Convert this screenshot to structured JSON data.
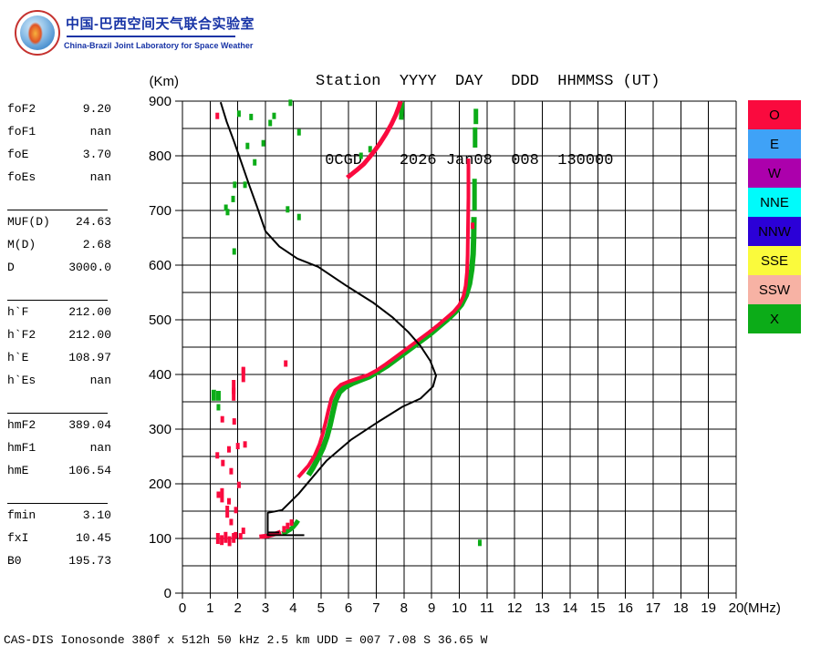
{
  "branding": {
    "title_cn": "中国-巴西空间天气联合实验室",
    "title_en": "China-Brazil Joint Laboratory for Space Weather"
  },
  "header": {
    "line1": "Station  YYYY  DAY   DDD  HHMMSS (UT)",
    "line2": " 0CGD    2026 Jan08  008  130000"
  },
  "parameters": {
    "groups": [
      [
        {
          "label": "foF2",
          "value": "9.20"
        },
        {
          "label": "foF1",
          "value": "nan"
        },
        {
          "label": "foE",
          "value": "3.70"
        },
        {
          "label": "foEs",
          "value": "nan"
        }
      ],
      [
        {
          "label": "MUF(D)",
          "value": "24.63"
        },
        {
          "label": "M(D)",
          "value": "2.68"
        },
        {
          "label": "D",
          "value": "3000.0"
        }
      ],
      [
        {
          "label": "h`F",
          "value": "212.00"
        },
        {
          "label": "h`F2",
          "value": "212.00"
        },
        {
          "label": "h`E",
          "value": "108.97"
        },
        {
          "label": "h`Es",
          "value": "nan"
        }
      ],
      [
        {
          "label": "hmF2",
          "value": "389.04"
        },
        {
          "label": "hmF1",
          "value": "nan"
        },
        {
          "label": "hmE",
          "value": "106.54"
        }
      ],
      [
        {
          "label": "fmin",
          "value": "3.10"
        },
        {
          "label": "fxI",
          "value": "10.45"
        },
        {
          "label": "B0",
          "value": "195.73"
        }
      ]
    ]
  },
  "legend": [
    {
      "label": "O",
      "color": "#fa0a3e"
    },
    {
      "label": "E",
      "color": "#3fa2f7"
    },
    {
      "label": "W",
      "color": "#ac00ac"
    },
    {
      "label": "NNE",
      "color": "#00fbfb"
    },
    {
      "label": "NNW",
      "color": "#2b00d7"
    },
    {
      "label": "SSE",
      "color": "#fafa3c"
    },
    {
      "label": "SSW",
      "color": "#f7b2a4"
    },
    {
      "label": "X",
      "color": "#0cac18"
    }
  ],
  "caption": "CAS-DIS Ionosonde 380f x 512h 50 kHz 2.5 km UDD = 007 7.08 S 36.65 W",
  "colors": {
    "o_red": "#fa0a3e",
    "x_green": "#0cac18",
    "profile": "#000000"
  },
  "chart_data": {
    "type": "scatter",
    "title": "Ionogram 0CGD 2026 Jan08 130000 UT",
    "xlabel": "(MHz)",
    "ylabel": "(Km)",
    "xlim": [
      0,
      20
    ],
    "ylim": [
      0,
      900
    ],
    "x_ticks": [
      0,
      1,
      2,
      3,
      4,
      5,
      6,
      7,
      8,
      9,
      10,
      11,
      12,
      13,
      14,
      15,
      16,
      17,
      18,
      19,
      20
    ],
    "y_ticks": [
      0,
      100,
      200,
      300,
      400,
      500,
      600,
      700,
      800,
      900
    ],
    "grid_y_step": 50,
    "grid": true,
    "legend_position": "right-outside",
    "series": [
      {
        "name": "X-mode-F-trace",
        "color_key": "x_green",
        "kind": "line",
        "width": 6,
        "points": [
          [
            4.55,
            216
          ],
          [
            4.72,
            230
          ],
          [
            4.9,
            247
          ],
          [
            5.08,
            266
          ],
          [
            5.22,
            286
          ],
          [
            5.33,
            307
          ],
          [
            5.43,
            330
          ],
          [
            5.53,
            352
          ],
          [
            5.68,
            368
          ],
          [
            5.88,
            377
          ],
          [
            6.15,
            384
          ],
          [
            6.45,
            390
          ],
          [
            6.75,
            396
          ],
          [
            7.05,
            405
          ],
          [
            7.4,
            416
          ],
          [
            7.75,
            429
          ],
          [
            8.15,
            444
          ],
          [
            8.55,
            459
          ],
          [
            8.95,
            474
          ],
          [
            9.3,
            489
          ],
          [
            9.6,
            502
          ],
          [
            9.85,
            514
          ],
          [
            10.08,
            528
          ],
          [
            10.25,
            545
          ],
          [
            10.37,
            566
          ],
          [
            10.45,
            592
          ],
          [
            10.5,
            620
          ],
          [
            10.52,
            652
          ],
          [
            10.53,
            688
          ]
        ]
      },
      {
        "name": "X-mode-F-dashes",
        "color_key": "x_green",
        "kind": "segments",
        "width": 5,
        "segments": [
          [
            [
              10.55,
              700
            ],
            [
              10.55,
              758
            ]
          ],
          [
            [
              10.57,
              815
            ],
            [
              10.57,
              852
            ]
          ],
          [
            [
              10.6,
              858
            ],
            [
              10.6,
              886
            ]
          ],
          [
            [
              7.9,
              866
            ],
            [
              7.93,
              898
            ]
          ],
          [
            [
              1.13,
              352
            ],
            [
              1.13,
              372
            ]
          ],
          [
            [
              1.3,
              352
            ],
            [
              1.3,
              370
            ]
          ]
        ]
      },
      {
        "name": "X-mode-E-trace",
        "color_key": "x_green",
        "kind": "line",
        "width": 5,
        "points": [
          [
            3.6,
            109
          ],
          [
            3.75,
            112
          ],
          [
            3.88,
            116
          ],
          [
            4.0,
            121
          ],
          [
            4.1,
            127
          ],
          [
            4.18,
            133
          ]
        ]
      },
      {
        "name": "X-scatter",
        "color_key": "x_green",
        "kind": "dots",
        "points": [
          [
            2.04,
            877
          ],
          [
            2.48,
            871
          ],
          [
            3.31,
            873
          ],
          [
            3.9,
            897
          ],
          [
            3.17,
            860
          ],
          [
            4.21,
            843
          ],
          [
            2.35,
            818
          ],
          [
            2.92,
            823
          ],
          [
            2.61,
            788
          ],
          [
            2.26,
            747
          ],
          [
            1.89,
            747
          ],
          [
            1.83,
            721
          ],
          [
            1.57,
            705
          ],
          [
            1.63,
            697
          ],
          [
            3.8,
            702
          ],
          [
            4.21,
            688
          ],
          [
            1.87,
            625
          ],
          [
            1.3,
            340
          ],
          [
            6.45,
            800
          ],
          [
            6.78,
            812
          ],
          [
            10.74,
            92
          ]
        ]
      },
      {
        "name": "O-mode-F-trace",
        "color_key": "o_red",
        "kind": "line",
        "width": 4,
        "points": [
          [
            4.18,
            212
          ],
          [
            4.32,
            220
          ],
          [
            4.55,
            233
          ],
          [
            4.78,
            252
          ],
          [
            4.95,
            272
          ],
          [
            5.07,
            292
          ],
          [
            5.17,
            312
          ],
          [
            5.27,
            334
          ],
          [
            5.38,
            356
          ],
          [
            5.52,
            371
          ],
          [
            5.72,
            381
          ],
          [
            6.0,
            387
          ],
          [
            6.35,
            393
          ],
          [
            6.7,
            399
          ],
          [
            7.0,
            407
          ],
          [
            7.35,
            419
          ],
          [
            7.7,
            432
          ],
          [
            8.1,
            447
          ],
          [
            8.5,
            462
          ],
          [
            8.9,
            477
          ],
          [
            9.25,
            491
          ],
          [
            9.55,
            504
          ],
          [
            9.8,
            515
          ],
          [
            10.0,
            527
          ],
          [
            10.15,
            543
          ],
          [
            10.23,
            562
          ],
          [
            10.28,
            588
          ],
          [
            10.3,
            618
          ],
          [
            10.31,
            652
          ],
          [
            10.32,
            688
          ],
          [
            10.33,
            725
          ],
          [
            10.33,
            762
          ],
          [
            10.33,
            795
          ]
        ]
      },
      {
        "name": "O-mode-2F-hop-trace",
        "color_key": "o_red",
        "kind": "line",
        "width": 5,
        "points": [
          [
            5.95,
            760
          ],
          [
            6.1,
            766
          ],
          [
            6.3,
            774
          ],
          [
            6.55,
            785
          ],
          [
            6.75,
            797
          ],
          [
            6.95,
            810
          ],
          [
            7.15,
            824
          ],
          [
            7.35,
            840
          ],
          [
            7.55,
            858
          ],
          [
            7.7,
            874
          ],
          [
            7.82,
            890
          ],
          [
            7.88,
            900
          ]
        ]
      },
      {
        "name": "O-mode-E-trace",
        "color_key": "o_red",
        "kind": "line",
        "width": 5,
        "points": [
          [
            2.78,
            103
          ],
          [
            2.95,
            104
          ],
          [
            3.1,
            105
          ],
          [
            3.25,
            107
          ],
          [
            3.4,
            109
          ],
          [
            3.55,
            112
          ]
        ]
      },
      {
        "name": "O-dashes",
        "color_key": "o_red",
        "kind": "segments",
        "width": 4,
        "segments": [
          [
            [
              1.85,
              352
            ],
            [
              1.85,
              390
            ]
          ],
          [
            [
              2.2,
              386
            ],
            [
              2.2,
              414
            ]
          ],
          [
            [
              1.43,
              166
            ],
            [
              1.43,
              192
            ]
          ],
          [
            [
              1.62,
              138
            ],
            [
              1.62,
              160
            ]
          ],
          [
            [
              1.28,
              90
            ],
            [
              1.28,
              110
            ]
          ],
          [
            [
              1.42,
              88
            ],
            [
              1.42,
              106
            ]
          ],
          [
            [
              1.56,
              92
            ],
            [
              1.56,
              112
            ]
          ],
          [
            [
              1.7,
              86
            ],
            [
              1.7,
              104
            ]
          ],
          [
            [
              1.85,
              92
            ],
            [
              1.85,
              110
            ]
          ]
        ]
      },
      {
        "name": "O-scatter",
        "color_key": "o_red",
        "kind": "dots",
        "points": [
          [
            1.26,
            873
          ],
          [
            3.73,
            420
          ],
          [
            2.2,
            407
          ],
          [
            1.85,
            370
          ],
          [
            1.44,
            318
          ],
          [
            1.87,
            314
          ],
          [
            2.0,
            269
          ],
          [
            2.26,
            272
          ],
          [
            1.68,
            263
          ],
          [
            1.26,
            252
          ],
          [
            1.46,
            238
          ],
          [
            1.76,
            223
          ],
          [
            2.04,
            198
          ],
          [
            1.3,
            180
          ],
          [
            1.68,
            168
          ],
          [
            1.93,
            152
          ],
          [
            1.76,
            130
          ],
          [
            2.2,
            114
          ],
          [
            2.1,
            104
          ],
          [
            1.92,
            106
          ],
          [
            3.67,
            117
          ],
          [
            3.8,
            123
          ],
          [
            3.94,
            129
          ],
          [
            10.48,
            672
          ]
        ]
      },
      {
        "name": "true-height-profile",
        "color_key": "profile",
        "kind": "line",
        "width": 2,
        "points": [
          [
            1.38,
            898
          ],
          [
            1.6,
            862
          ],
          [
            1.85,
            828
          ],
          [
            2.1,
            792
          ],
          [
            2.4,
            748
          ],
          [
            2.7,
            706
          ],
          [
            3.0,
            662
          ],
          [
            3.5,
            634
          ],
          [
            4.15,
            612
          ],
          [
            4.9,
            597
          ],
          [
            5.9,
            563
          ],
          [
            6.9,
            531
          ],
          [
            7.6,
            504
          ],
          [
            8.15,
            478
          ],
          [
            8.6,
            452
          ],
          [
            8.95,
            425
          ],
          [
            9.16,
            398
          ],
          [
            9.05,
            378
          ],
          [
            8.6,
            356
          ],
          [
            7.95,
            341
          ],
          [
            7.0,
            311
          ],
          [
            6.1,
            281
          ],
          [
            5.2,
            242
          ],
          [
            4.55,
            203
          ],
          [
            4.2,
            182
          ],
          [
            3.6,
            152
          ],
          [
            3.08,
            147
          ],
          [
            3.08,
            106
          ],
          [
            4.4,
            106
          ]
        ]
      },
      {
        "name": "profile-valley-spur",
        "color_key": "profile",
        "kind": "segments",
        "width": 2,
        "segments": [
          [
            [
              3.08,
              111
            ],
            [
              3.5,
              111
            ]
          ]
        ]
      }
    ]
  }
}
